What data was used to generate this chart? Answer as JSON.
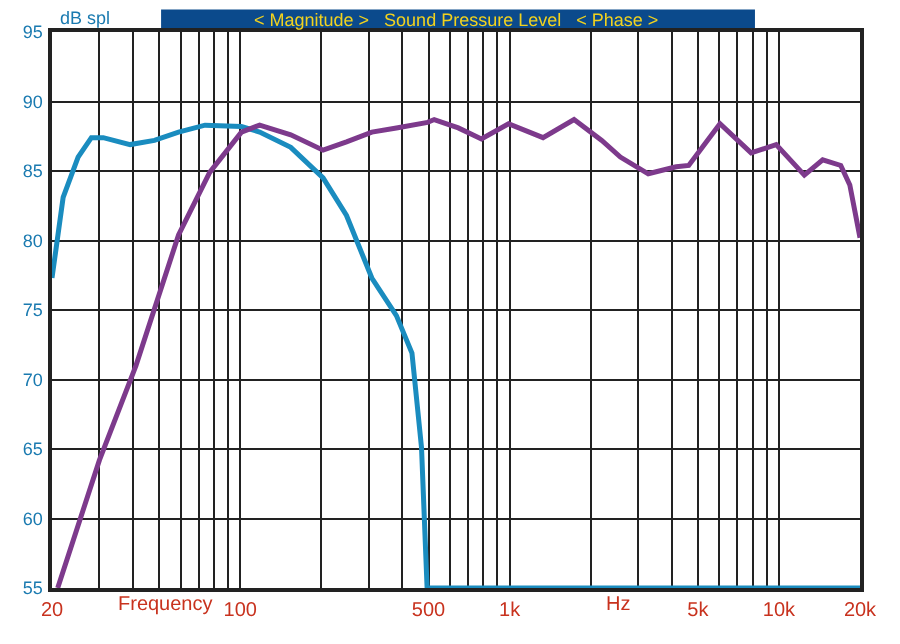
{
  "chart_data": {
    "type": "line",
    "title": "< Magnitude >   Sound Pressure Level   < Phase >",
    "xlabel": "Frequency",
    "ylabel": "dB spl",
    "annotations": [
      "Hz"
    ],
    "log": "x",
    "xlim": [
      20,
      20000
    ],
    "ylim": [
      55,
      95
    ],
    "xticks": [
      20,
      {
        "value": 30,
        "label": null
      },
      {
        "value": 40,
        "label": null
      },
      {
        "value": 50,
        "label": null
      },
      {
        "value": 60,
        "label": null
      },
      {
        "value": 70,
        "label": null
      },
      {
        "value": 80,
        "label": null
      },
      {
        "value": 90,
        "label": null
      },
      100,
      {
        "value": 200,
        "label": null
      },
      {
        "value": 300,
        "label": null
      },
      {
        "value": 400,
        "label": null
      },
      500,
      {
        "value": 600,
        "label": null
      },
      {
        "value": 700,
        "label": null
      },
      {
        "value": 800,
        "label": null
      },
      {
        "value": 900,
        "label": null
      },
      {
        "value": 1000,
        "label": "1k"
      },
      {
        "value": 2000,
        "label": null
      },
      {
        "value": 3000,
        "label": null
      },
      {
        "value": 4000,
        "label": null
      },
      {
        "value": 5000,
        "label": "5k"
      },
      {
        "value": 6000,
        "label": null
      },
      {
        "value": 7000,
        "label": null
      },
      {
        "value": 8000,
        "label": null
      },
      {
        "value": 9000,
        "label": null
      },
      {
        "value": 10000,
        "label": "10k"
      },
      {
        "value": 20000,
        "label": "20k"
      }
    ],
    "yticks": [
      55,
      60,
      65,
      70,
      75,
      80,
      85,
      90,
      95
    ],
    "grid": true,
    "line_style": "solid",
    "marker": "none",
    "series": [
      {
        "color": "#1a8cbf",
        "x": [
          20,
          22,
          25,
          28,
          31,
          39,
          48,
          59,
          74,
          101,
          118,
          154,
          203,
          248,
          308,
          380,
          434,
          471,
          494,
          1000,
          5000,
          20000
        ],
        "values": [
          77.3,
          83.1,
          86.0,
          87.4,
          87.4,
          86.9,
          87.2,
          87.8,
          88.3,
          88.2,
          87.8,
          86.7,
          84.5,
          81.8,
          77.3,
          74.6,
          71.9,
          65.1,
          55,
          55,
          55,
          55
        ]
      },
      {
        "color": "#7d3a8c",
        "x": [
          21,
          30,
          41,
          59,
          77,
          101,
          118,
          154,
          203,
          248,
          308,
          380,
          496,
          525,
          645,
          786,
          991,
          1331,
          1735,
          2199,
          2578,
          3272,
          4154,
          4625,
          6042,
          7883,
          9768,
          12430,
          14540,
          16970,
          18330,
          20000
        ],
        "values": [
          55,
          64.2,
          71.0,
          80.4,
          84.9,
          87.8,
          88.3,
          87.6,
          86.5,
          87.1,
          87.8,
          88.1,
          88.5,
          88.7,
          88.1,
          87.3,
          88.4,
          87.4,
          88.7,
          87.2,
          86.0,
          84.8,
          85.3,
          85.4,
          88.4,
          86.3,
          86.9,
          84.7,
          85.8,
          85.4,
          84.0,
          80.2
        ]
      }
    ]
  }
}
